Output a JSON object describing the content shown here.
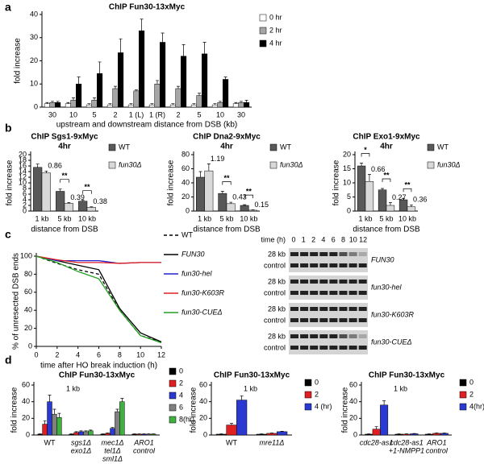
{
  "panels": [
    "a",
    "b",
    "c",
    "d"
  ],
  "chart_data": [
    {
      "type": "bar",
      "title": "ChIP Fun30-13xMyc",
      "ylabel": "fold increase",
      "xlabel": "upstream and downstream distance from DSB (kb)",
      "categories": [
        "30",
        "10",
        "5",
        "2",
        "1 (L)",
        "1 (R)",
        "2",
        "5",
        "10",
        "30"
      ],
      "ylim": [
        0,
        40
      ],
      "yticks": [
        0,
        10,
        20,
        30,
        40
      ],
      "legend": "right",
      "series": [
        {
          "name": "0 hr",
          "color": "#ffffff",
          "values": [
            1.5,
            1.5,
            1,
            1,
            1,
            1,
            1,
            1,
            1,
            1.5
          ],
          "errors": [
            0.5,
            0.5,
            0.5,
            0.5,
            0.5,
            0.5,
            0.5,
            0.5,
            0.5,
            0.5
          ]
        },
        {
          "name": "2 hr",
          "color": "#a6a6a6",
          "values": [
            2,
            3,
            3,
            8,
            7,
            10,
            8,
            5,
            2,
            2
          ],
          "errors": [
            0.5,
            1,
            1,
            1,
            0.5,
            1.5,
            1,
            1,
            0.5,
            0.5
          ]
        },
        {
          "name": "4 hr",
          "color": "#000000",
          "values": [
            2,
            10,
            14.5,
            23.5,
            33,
            28,
            22,
            23,
            12,
            2
          ],
          "errors": [
            0.5,
            3,
            5,
            6,
            5,
            4,
            5,
            5,
            1,
            1
          ]
        }
      ]
    },
    {
      "type": "bar",
      "title": "ChIP Sgs1-9xMyc",
      "subtitle": "4hr",
      "ylabel": "fold increase",
      "xlabel": "distance from DSB",
      "categories": [
        "1 kb",
        "5 kb",
        "10 kb"
      ],
      "ylim": [
        0,
        20
      ],
      "yticks": [
        0,
        2,
        4,
        6,
        8,
        10,
        12,
        14,
        16,
        18,
        20
      ],
      "legend": "right",
      "series": [
        {
          "name": "WT",
          "color": "#595959",
          "values": [
            15.5,
            7,
            3.5
          ],
          "errors": [
            1.2,
            0.8,
            0.3
          ]
        },
        {
          "name": "fun30Δ",
          "color": "#d9d9d9",
          "values": [
            13.5,
            2.7,
            1.3
          ],
          "errors": [
            0.7,
            0.3,
            0.2
          ],
          "value_notes": [
            "0.86",
            "0.39",
            "0.38"
          ]
        }
      ],
      "significance": [
        null,
        "**",
        "**"
      ]
    },
    {
      "type": "bar",
      "title": "ChIP Dna2-9xMyc",
      "subtitle": "4hr",
      "ylabel": "fold increase",
      "xlabel": "distance from DSB",
      "categories": [
        "1 kb",
        "5 kb",
        "10 kb"
      ],
      "ylim": [
        0,
        80
      ],
      "yticks": [
        0,
        20,
        40,
        60,
        80
      ],
      "legend": "right",
      "series": [
        {
          "name": "WT",
          "color": "#595959",
          "values": [
            48,
            25,
            8
          ],
          "errors": [
            8,
            3,
            1
          ]
        },
        {
          "name": "fun30Δ",
          "color": "#d9d9d9",
          "values": [
            57,
            10.5,
            1.2
          ],
          "errors": [
            10,
            2,
            0.5
          ],
          "value_notes": [
            "1.19",
            "0.43",
            "0.15"
          ]
        }
      ],
      "significance": [
        null,
        "**",
        "**"
      ]
    },
    {
      "type": "bar",
      "title": "ChIP Exo1-9xMyc",
      "subtitle": "4hr",
      "ylabel": "fold increase",
      "xlabel": "distance from DSB",
      "categories": [
        "1 kb",
        "5 kb",
        "10 kb"
      ],
      "ylim": [
        0,
        20
      ],
      "yticks": [
        0,
        5,
        10,
        15,
        20
      ],
      "legend": "right",
      "series": [
        {
          "name": "WT",
          "color": "#595959",
          "values": [
            16,
            7.5,
            4
          ],
          "errors": [
            1,
            0.5,
            0.5
          ]
        },
        {
          "name": "fun30Δ",
          "color": "#d9d9d9",
          "values": [
            10.5,
            2,
            1.5
          ],
          "errors": [
            2.5,
            1,
            0.7
          ],
          "value_notes": [
            "0.66",
            "0.27",
            "0.36"
          ]
        }
      ],
      "significance": [
        "*",
        "**",
        "**"
      ]
    },
    {
      "type": "line",
      "ylabel": "% of unresected DSB ends",
      "xlabel": "time after HO break induction (h)",
      "x": [
        0,
        2,
        4,
        6,
        8,
        10,
        12
      ],
      "xlim": [
        0,
        12
      ],
      "xticks": [
        0,
        2,
        4,
        6,
        8,
        10,
        12
      ],
      "ylim": [
        0,
        100
      ],
      "yticks": [
        0,
        20,
        40,
        60,
        80,
        100
      ],
      "legend": "right",
      "series": [
        {
          "name": "WT",
          "color": "#000000",
          "dashed": true,
          "values": [
            100,
            92,
            85,
            80,
            40,
            12,
            5
          ]
        },
        {
          "name": "FUN30",
          "color": "#000000",
          "values": [
            100,
            95,
            90,
            85,
            42,
            15,
            5
          ]
        },
        {
          "name": "fun30-hel",
          "color": "#2020d0",
          "values": [
            100,
            95,
            95,
            95,
            92,
            93,
            93
          ]
        },
        {
          "name": "fun30-K603R",
          "color": "#e02020",
          "values": [
            100,
            96,
            93,
            93,
            92,
            93,
            93
          ]
        },
        {
          "name": "fun30-CUEΔ",
          "color": "#20a020",
          "values": [
            100,
            93,
            83,
            75,
            40,
            12,
            4
          ]
        }
      ]
    },
    {
      "type": "bar",
      "title": "ChIP Fun30-13xMyc",
      "note": "1 kb",
      "ylabel": "fold increase",
      "categories": [
        [
          "WT"
        ],
        [
          "sgs1Δ",
          "exo1Δ"
        ],
        [
          "mec1Δ",
          "tel1Δ",
          "sml1Δ"
        ],
        [
          "ARO1",
          "control"
        ]
      ],
      "ylim": [
        0,
        60
      ],
      "yticks": [
        0,
        20,
        40,
        60
      ],
      "legend": "right",
      "series": [
        {
          "name": "0",
          "color": "#000000",
          "values": [
            1,
            1,
            1,
            1
          ],
          "errors": [
            0.3,
            0.3,
            0.3,
            0.3
          ]
        },
        {
          "name": "2",
          "color": "#e02020",
          "values": [
            13,
            3,
            2,
            1
          ],
          "errors": [
            4,
            1,
            0.5,
            0.3
          ]
        },
        {
          "name": "4",
          "color": "#2a3ad0",
          "values": [
            40,
            4,
            8,
            1
          ],
          "errors": [
            8,
            1,
            1,
            0.3
          ]
        },
        {
          "name": "6",
          "color": "#808080",
          "values": [
            25,
            4,
            28,
            1
          ],
          "errors": [
            6,
            1,
            3,
            0.3
          ]
        },
        {
          "name": "8(hr)",
          "color": "#40b040",
          "values": [
            21,
            5,
            40,
            1
          ],
          "errors": [
            5,
            1,
            4,
            0.3
          ]
        }
      ]
    },
    {
      "type": "bar",
      "title": "ChIP Fun30-13xMyc",
      "note": "1 kb",
      "ylabel": "fold increase",
      "categories": [
        [
          "WT"
        ],
        [
          "mre11Δ"
        ]
      ],
      "ylim": [
        0,
        60
      ],
      "yticks": [
        0,
        20,
        40,
        60
      ],
      "legend": "right",
      "series": [
        {
          "name": "0",
          "color": "#000000",
          "values": [
            1,
            1
          ],
          "errors": [
            0.3,
            0.3
          ]
        },
        {
          "name": "2",
          "color": "#e02020",
          "values": [
            12,
            2
          ],
          "errors": [
            2,
            0.5
          ]
        },
        {
          "name": "4 (hr)",
          "color": "#2a3ad0",
          "values": [
            42,
            4
          ],
          "errors": [
            5,
            0.5
          ]
        }
      ]
    },
    {
      "type": "bar",
      "title": "ChIP Fun30-13xMyc",
      "note": "1 kb",
      "ylabel": "fold increase",
      "categories": [
        [
          "cdc28-as1"
        ],
        [
          "cdc28-as1",
          "+1-NMPP1"
        ],
        [
          "ARO1",
          "control"
        ]
      ],
      "ylim": [
        0,
        60
      ],
      "yticks": [
        0,
        20,
        40,
        60
      ],
      "legend": "right",
      "series": [
        {
          "name": "0",
          "color": "#000000",
          "values": [
            1,
            1,
            1
          ],
          "errors": [
            0.3,
            0.3,
            0.3
          ]
        },
        {
          "name": "2",
          "color": "#e02020",
          "values": [
            7,
            1,
            2
          ],
          "errors": [
            3,
            0.3,
            0.5
          ]
        },
        {
          "name": "4(hr)",
          "color": "#2a3ad0",
          "values": [
            36,
            1.5,
            2
          ],
          "errors": [
            5,
            0.3,
            0.5
          ]
        }
      ]
    }
  ],
  "blot": {
    "time_label": "time (h)",
    "times": [
      "0",
      "1",
      "2",
      "4",
      "6",
      "8",
      "10",
      "12"
    ],
    "rows": [
      {
        "bands": [
          "28 kb",
          "control"
        ],
        "label": "FUN30"
      },
      {
        "bands": [
          "28 kb",
          "control"
        ],
        "label": "fun30-hel"
      },
      {
        "bands": [
          "28 kb",
          "control"
        ],
        "label": "fun30-K603R"
      },
      {
        "bands": [
          "28 kb",
          "control"
        ],
        "label": "fun30-CUEΔ"
      }
    ]
  }
}
